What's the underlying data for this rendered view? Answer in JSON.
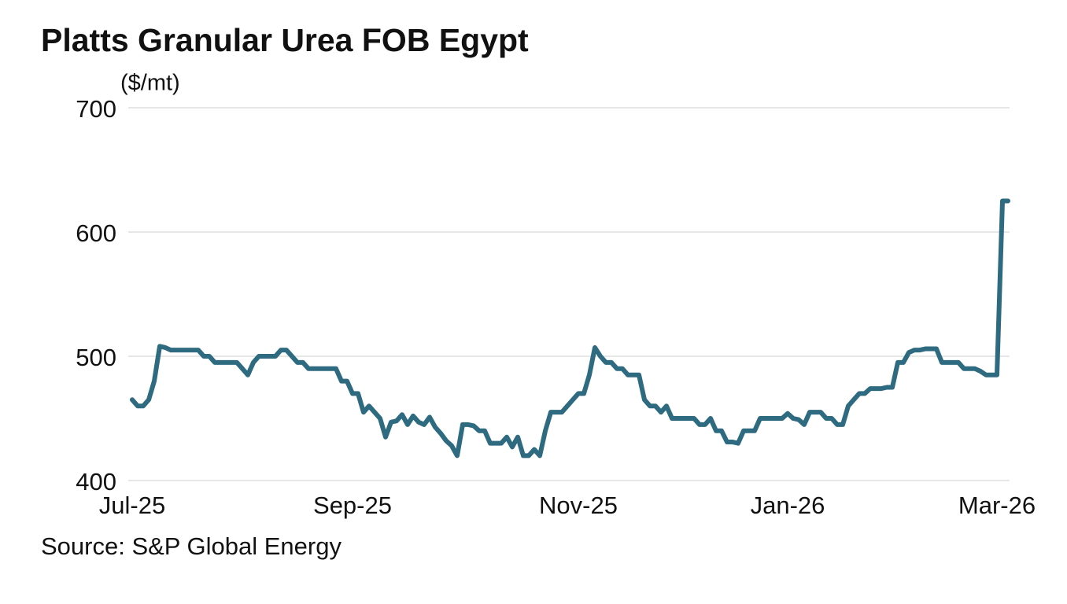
{
  "chart_data": {
    "type": "line",
    "title": "Platts Granular Urea FOB Egypt",
    "y_label": "($/mt)",
    "source": "Source: S&P Global Energy",
    "categories": [
      "Jul-25",
      null,
      null,
      null,
      null,
      null,
      null,
      null,
      null,
      null,
      null,
      null,
      null,
      null,
      null,
      null,
      null,
      null,
      null,
      null,
      null,
      null,
      null,
      null,
      null,
      null,
      null,
      null,
      null,
      null,
      null,
      null,
      null,
      null,
      null,
      null,
      null,
      null,
      null,
      null,
      "Sep-25",
      null,
      null,
      null,
      null,
      null,
      null,
      null,
      null,
      null,
      null,
      null,
      null,
      null,
      null,
      null,
      null,
      null,
      null,
      null,
      null,
      null,
      null,
      null,
      null,
      null,
      null,
      null,
      null,
      null,
      null,
      null,
      null,
      null,
      null,
      null,
      null,
      null,
      null,
      null,
      null,
      "Nov-25",
      null,
      null,
      null,
      null,
      null,
      null,
      null,
      null,
      null,
      null,
      null,
      null,
      null,
      null,
      null,
      null,
      null,
      null,
      null,
      null,
      null,
      null,
      null,
      null,
      null,
      null,
      null,
      null,
      null,
      null,
      null,
      null,
      null,
      null,
      null,
      null,
      null,
      "Jan-26",
      null,
      null,
      null,
      null,
      null,
      null,
      null,
      null,
      null,
      null,
      null,
      null,
      null,
      null,
      null,
      null,
      null,
      null,
      null,
      null,
      null,
      null,
      null,
      null,
      null,
      null,
      null,
      null,
      null,
      null,
      null,
      null,
      null,
      null,
      null,
      null,
      null,
      "Mar-26",
      null,
      null
    ],
    "values": [
      465,
      460,
      460,
      465,
      480,
      508,
      507,
      505,
      505,
      505,
      505,
      505,
      505,
      500,
      500,
      495,
      495,
      495,
      495,
      495,
      490,
      485,
      495,
      500,
      500,
      500,
      500,
      505,
      505,
      500,
      495,
      495,
      490,
      490,
      490,
      490,
      490,
      490,
      480,
      480,
      470,
      470,
      455,
      460,
      455,
      450,
      435,
      447,
      448,
      453,
      445,
      452,
      447,
      445,
      451,
      443,
      438,
      432,
      428,
      420,
      445,
      445,
      444,
      440,
      440,
      430,
      430,
      430,
      435,
      427,
      435,
      420,
      420,
      425,
      420,
      440,
      455,
      455,
      455,
      460,
      465,
      470,
      470,
      485,
      507,
      500,
      495,
      495,
      490,
      490,
      485,
      485,
      485,
      465,
      460,
      460,
      455,
      460,
      450,
      450,
      450,
      450,
      450,
      445,
      445,
      450,
      440,
      440,
      431,
      431,
      430,
      440,
      440,
      440,
      450,
      450,
      450,
      450,
      450,
      454,
      450,
      449,
      445,
      455,
      455,
      455,
      450,
      450,
      445,
      445,
      460,
      465,
      470,
      470,
      474,
      474,
      474,
      475,
      475,
      495,
      495,
      503,
      505,
      505,
      506,
      506,
      506,
      495,
      495,
      495,
      495,
      490,
      490,
      490,
      488,
      485,
      485,
      485,
      625,
      625
    ],
    "color": "#2e6b80",
    "ylim": [
      400,
      700
    ],
    "yticks": [
      400,
      500,
      600,
      700
    ],
    "grid": true
  }
}
